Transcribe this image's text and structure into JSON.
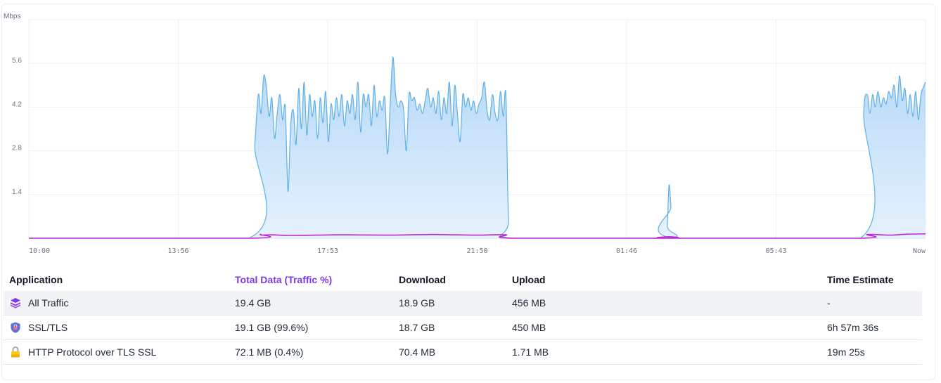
{
  "chart_data": {
    "type": "area",
    "ylabel": "Mbps",
    "yticks": [
      "1.4",
      "2.8",
      "4.2",
      "5.6"
    ],
    "ytick_values": [
      1.4,
      2.8,
      4.2,
      5.6
    ],
    "ylim": [
      0,
      7
    ],
    "xticks": [
      "10:00",
      "13:56",
      "17:53",
      "21:50",
      "01:46",
      "05:43",
      "Now"
    ],
    "grid": true,
    "colors": {
      "download": "#5fb0e6",
      "download_fill": "#bcdcf8",
      "upload": "#c026d3"
    },
    "series": [
      {
        "key": "download",
        "points": [
          [
            0,
            0
          ],
          [
            0.245,
            0
          ],
          [
            0.252,
            3.0
          ],
          [
            0.256,
            4.6
          ],
          [
            0.259,
            4.0
          ],
          [
            0.262,
            5.2
          ],
          [
            0.265,
            4.8
          ],
          [
            0.268,
            3.9
          ],
          [
            0.271,
            4.5
          ],
          [
            0.274,
            3.2
          ],
          [
            0.277,
            4.0
          ],
          [
            0.28,
            4.6
          ],
          [
            0.283,
            3.8
          ],
          [
            0.286,
            4.2
          ],
          [
            0.289,
            1.5
          ],
          [
            0.292,
            3.6
          ],
          [
            0.295,
            4.1
          ],
          [
            0.298,
            3.0
          ],
          [
            0.301,
            4.8
          ],
          [
            0.304,
            3.5
          ],
          [
            0.307,
            5.0
          ],
          [
            0.31,
            3.3
          ],
          [
            0.313,
            4.6
          ],
          [
            0.316,
            3.9
          ],
          [
            0.319,
            4.4
          ],
          [
            0.322,
            3.2
          ],
          [
            0.325,
            4.5
          ],
          [
            0.328,
            3.7
          ],
          [
            0.331,
            4.7
          ],
          [
            0.334,
            3.1
          ],
          [
            0.337,
            4.3
          ],
          [
            0.34,
            3.8
          ],
          [
            0.343,
            4.5
          ],
          [
            0.346,
            3.9
          ],
          [
            0.349,
            4.6
          ],
          [
            0.352,
            3.6
          ],
          [
            0.355,
            4.4
          ],
          [
            0.358,
            4.0
          ],
          [
            0.361,
            4.6
          ],
          [
            0.364,
            3.8
          ],
          [
            0.367,
            5.0
          ],
          [
            0.37,
            3.4
          ],
          [
            0.373,
            4.6
          ],
          [
            0.376,
            4.2
          ],
          [
            0.379,
            4.6
          ],
          [
            0.382,
            3.6
          ],
          [
            0.385,
            4.9
          ],
          [
            0.388,
            3.9
          ],
          [
            0.391,
            4.4
          ],
          [
            0.394,
            4.1
          ],
          [
            0.397,
            4.5
          ],
          [
            0.4,
            2.7
          ],
          [
            0.403,
            4.3
          ],
          [
            0.406,
            5.8
          ],
          [
            0.409,
            4.6
          ],
          [
            0.412,
            4.2
          ],
          [
            0.415,
            4.4
          ],
          [
            0.418,
            4.1
          ],
          [
            0.421,
            2.8
          ],
          [
            0.424,
            4.6
          ],
          [
            0.427,
            4.4
          ],
          [
            0.43,
            4.5
          ],
          [
            0.433,
            4.1
          ],
          [
            0.436,
            4.3
          ],
          [
            0.439,
            4.0
          ],
          [
            0.442,
            4.4
          ],
          [
            0.445,
            4.8
          ],
          [
            0.448,
            4.2
          ],
          [
            0.451,
            4.5
          ],
          [
            0.454,
            4.0
          ],
          [
            0.457,
            4.7
          ],
          [
            0.46,
            3.8
          ],
          [
            0.463,
            4.5
          ],
          [
            0.466,
            4.0
          ],
          [
            0.469,
            5.0
          ],
          [
            0.472,
            3.6
          ],
          [
            0.475,
            4.9
          ],
          [
            0.478,
            4.0
          ],
          [
            0.481,
            3.1
          ],
          [
            0.484,
            4.6
          ],
          [
            0.487,
            4.2
          ],
          [
            0.49,
            4.5
          ],
          [
            0.493,
            4.1
          ],
          [
            0.496,
            4.4
          ],
          [
            0.499,
            4.0
          ],
          [
            0.502,
            4.3
          ],
          [
            0.505,
            4.5
          ],
          [
            0.508,
            5.0
          ],
          [
            0.511,
            4.1
          ],
          [
            0.514,
            3.8
          ],
          [
            0.517,
            4.6
          ],
          [
            0.52,
            4.0
          ],
          [
            0.523,
            3.8
          ],
          [
            0.526,
            4.7
          ],
          [
            0.529,
            3.9
          ],
          [
            0.532,
            4.6
          ],
          [
            0.535,
            0.6
          ],
          [
            0.54,
            0
          ],
          [
            0.71,
            0
          ],
          [
            0.712,
            0.4
          ],
          [
            0.714,
            1.7
          ],
          [
            0.716,
            1.0
          ],
          [
            0.718,
            0
          ],
          [
            0.927,
            0
          ],
          [
            0.931,
            4.0
          ],
          [
            0.935,
            4.6
          ],
          [
            0.938,
            4.0
          ],
          [
            0.941,
            4.6
          ],
          [
            0.944,
            4.2
          ],
          [
            0.947,
            4.7
          ],
          [
            0.95,
            4.2
          ],
          [
            0.953,
            4.5
          ],
          [
            0.956,
            4.3
          ],
          [
            0.959,
            4.7
          ],
          [
            0.962,
            4.5
          ],
          [
            0.965,
            4.9
          ],
          [
            0.968,
            4.2
          ],
          [
            0.971,
            5.2
          ],
          [
            0.974,
            4.4
          ],
          [
            0.977,
            4.8
          ],
          [
            0.98,
            4.0
          ],
          [
            0.983,
            4.6
          ],
          [
            0.986,
            3.9
          ],
          [
            0.989,
            4.7
          ],
          [
            0.992,
            3.8
          ],
          [
            0.995,
            4.6
          ],
          [
            1.0,
            5.0
          ]
        ]
      },
      {
        "key": "upload",
        "points": [
          [
            0,
            0
          ],
          [
            0.248,
            0
          ],
          [
            0.258,
            0.12
          ],
          [
            0.26,
            0.1
          ],
          [
            0.27,
            0.11
          ],
          [
            0.29,
            0.09
          ],
          [
            0.32,
            0.1
          ],
          [
            0.35,
            0.11
          ],
          [
            0.4,
            0.1
          ],
          [
            0.45,
            0.12
          ],
          [
            0.5,
            0.1
          ],
          [
            0.532,
            0.11
          ],
          [
            0.538,
            0
          ],
          [
            0.711,
            0
          ],
          [
            0.714,
            0.05
          ],
          [
            0.717,
            0
          ],
          [
            0.928,
            0
          ],
          [
            0.935,
            0.12
          ],
          [
            0.96,
            0.1
          ],
          [
            0.98,
            0.13
          ],
          [
            1.0,
            0.14
          ]
        ]
      }
    ]
  },
  "table": {
    "headers": {
      "application": "Application",
      "total": "Total Data (Traffic %)",
      "download": "Download",
      "upload": "Upload",
      "time": "Time Estimate"
    },
    "rows": [
      {
        "icon": "layers-icon",
        "name": "All Traffic",
        "total": "19.4 GB",
        "download": "18.9 GB",
        "upload": "456 MB",
        "time": "-"
      },
      {
        "icon": "shield-lock-icon",
        "name": "SSL/TLS",
        "total": "19.1 GB (99.6%)",
        "download": "18.7 GB",
        "upload": "450 MB",
        "time": "6h 57m 36s"
      },
      {
        "icon": "padlock-icon",
        "name": "HTTP Protocol over TLS SSL",
        "total": "72.1 MB (0.4%)",
        "download": "70.4 MB",
        "upload": "1.71 MB",
        "time": "19m 25s"
      }
    ]
  }
}
